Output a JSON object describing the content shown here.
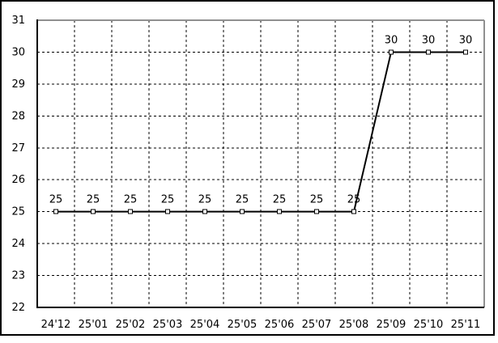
{
  "window": {
    "background": "#ffffff",
    "border_color": "#000000"
  },
  "chart_data": {
    "type": "line",
    "title": "",
    "xlabel": "",
    "ylabel": "",
    "categories": [
      "24'12",
      "25'01",
      "25'02",
      "25'03",
      "25'04",
      "25'05",
      "25'06",
      "25'07",
      "25'08",
      "25'09",
      "25'10",
      "25'11"
    ],
    "series": [
      {
        "name": "value",
        "values": [
          25,
          25,
          25,
          25,
          25,
          25,
          25,
          25,
          25,
          30,
          30,
          30
        ]
      }
    ],
    "point_labels": [
      "25",
      "25",
      "25",
      "25",
      "25",
      "25",
      "25",
      "25",
      "25",
      "30",
      "30",
      "30"
    ],
    "ylim": [
      22,
      31
    ],
    "yticks": [
      22,
      23,
      24,
      25,
      26,
      27,
      28,
      29,
      30,
      31
    ],
    "grid": true,
    "grid_style": "dashed",
    "legend": "none",
    "marker": "open-square",
    "colors": {
      "line": "#000000",
      "marker_fill": "#ffffff",
      "marker_stroke": "#000000",
      "grid": "#000000",
      "axis_left_bottom": "#000000",
      "axis_top_right": "#909090",
      "text": "#000000",
      "background": "#ffffff"
    }
  }
}
